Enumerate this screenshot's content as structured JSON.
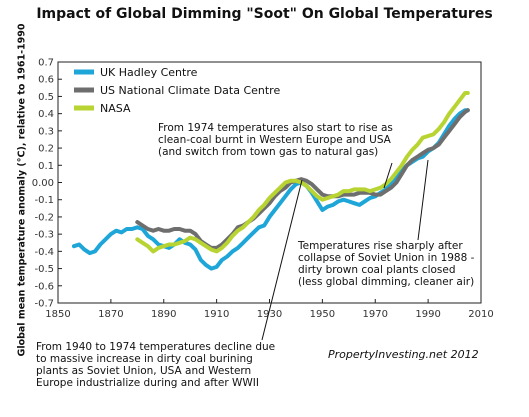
{
  "title": "Impact of Global Dimming \"Soot\" On Global Temperatures",
  "ylabel": "Global mean temperature anomaly (°C), relative to 1961-1990",
  "credit": "PropertyInvesting.net 2012",
  "annotations": {
    "a1974": [
      "From 1974 temperatures also start to rise as",
      "clean-coal burnt in Western Europe and USA",
      "(and switch from town gas to natural gas)"
    ],
    "a1988": [
      "Temperatures rise sharply after",
      "collapse of Soviet Union in 1988 -",
      "dirty brown coal plants closed",
      "(less global dimming, cleaner air)"
    ],
    "a1940": [
      "From 1940 to 1974 temperatures decline due",
      "to massive increase in dirty coal burining",
      "plants as Soviet Union, USA and Western",
      "Europe industrialize during and after WWII"
    ]
  },
  "chart_data": {
    "type": "line",
    "xlim": [
      1850,
      2010
    ],
    "ylim": [
      -0.7,
      0.7
    ],
    "x_ticks": [
      1850,
      1870,
      1890,
      1910,
      1930,
      1950,
      1970,
      1990,
      2010
    ],
    "y_ticks": [
      "0.7",
      "0.6",
      "0.5",
      "0.4",
      "0.3",
      "0.2",
      "0.1",
      "0.00",
      "-0.1",
      "-0.2",
      "-0.3",
      "-0.4",
      "-0.5",
      "-0.6",
      "-0.7"
    ],
    "legend": [
      "UK Hadley Centre",
      "US National Climate Data Centre",
      "NASA"
    ],
    "colors": [
      "#1ea6d8",
      "#6e6e6e",
      "#b8d432"
    ],
    "series": [
      {
        "name": "UK Hadley Centre",
        "x": [
          1856,
          1858,
          1860,
          1862,
          1864,
          1866,
          1868,
          1870,
          1872,
          1874,
          1876,
          1878,
          1880,
          1882,
          1884,
          1886,
          1888,
          1890,
          1892,
          1894,
          1896,
          1898,
          1900,
          1902,
          1904,
          1906,
          1908,
          1910,
          1912,
          1914,
          1916,
          1918,
          1920,
          1922,
          1924,
          1926,
          1928,
          1930,
          1932,
          1934,
          1936,
          1938,
          1940,
          1942,
          1944,
          1946,
          1948,
          1950,
          1952,
          1954,
          1956,
          1958,
          1960,
          1962,
          1964,
          1966,
          1968,
          1970,
          1972,
          1974,
          1976,
          1978,
          1980,
          1982,
          1984,
          1986,
          1988,
          1990,
          1992,
          1994,
          1996,
          1998,
          2000,
          2002,
          2004,
          2005
        ],
        "y": [
          -0.37,
          -0.36,
          -0.39,
          -0.41,
          -0.4,
          -0.36,
          -0.33,
          -0.3,
          -0.28,
          -0.29,
          -0.27,
          -0.27,
          -0.26,
          -0.27,
          -0.31,
          -0.33,
          -0.36,
          -0.37,
          -0.38,
          -0.36,
          -0.33,
          -0.35,
          -0.36,
          -0.39,
          -0.45,
          -0.48,
          -0.5,
          -0.49,
          -0.45,
          -0.43,
          -0.4,
          -0.38,
          -0.35,
          -0.32,
          -0.29,
          -0.26,
          -0.25,
          -0.2,
          -0.16,
          -0.12,
          -0.08,
          -0.04,
          -0.01,
          0.0,
          -0.02,
          -0.06,
          -0.11,
          -0.16,
          -0.14,
          -0.13,
          -0.11,
          -0.1,
          -0.11,
          -0.12,
          -0.13,
          -0.11,
          -0.09,
          -0.08,
          -0.06,
          -0.04,
          0.0,
          0.03,
          0.07,
          0.1,
          0.12,
          0.14,
          0.15,
          0.18,
          0.2,
          0.23,
          0.28,
          0.33,
          0.37,
          0.4,
          0.42,
          0.42
        ]
      },
      {
        "name": "US National Climate Data Centre",
        "x": [
          1880,
          1882,
          1884,
          1886,
          1888,
          1890,
          1892,
          1894,
          1896,
          1898,
          1900,
          1902,
          1904,
          1906,
          1908,
          1910,
          1912,
          1914,
          1916,
          1918,
          1920,
          1922,
          1924,
          1926,
          1928,
          1930,
          1932,
          1934,
          1936,
          1938,
          1940,
          1942,
          1944,
          1946,
          1948,
          1950,
          1952,
          1954,
          1956,
          1958,
          1960,
          1962,
          1964,
          1966,
          1968,
          1970,
          1972,
          1974,
          1976,
          1978,
          1980,
          1982,
          1984,
          1986,
          1988,
          1990,
          1992,
          1994,
          1996,
          1998,
          2000,
          2002,
          2004,
          2005
        ],
        "y": [
          -0.23,
          -0.25,
          -0.27,
          -0.28,
          -0.27,
          -0.28,
          -0.28,
          -0.27,
          -0.27,
          -0.28,
          -0.28,
          -0.3,
          -0.34,
          -0.36,
          -0.38,
          -0.38,
          -0.36,
          -0.33,
          -0.3,
          -0.26,
          -0.25,
          -0.23,
          -0.21,
          -0.18,
          -0.15,
          -0.12,
          -0.08,
          -0.05,
          -0.03,
          0.0,
          0.01,
          0.02,
          0.01,
          -0.01,
          -0.04,
          -0.07,
          -0.08,
          -0.08,
          -0.08,
          -0.07,
          -0.07,
          -0.07,
          -0.06,
          -0.06,
          -0.06,
          -0.07,
          -0.07,
          -0.05,
          -0.03,
          0.0,
          0.05,
          0.1,
          0.13,
          0.15,
          0.17,
          0.19,
          0.2,
          0.22,
          0.26,
          0.3,
          0.34,
          0.38,
          0.41,
          0.42
        ]
      },
      {
        "name": "NASA",
        "x": [
          1880,
          1882,
          1884,
          1886,
          1888,
          1890,
          1892,
          1894,
          1896,
          1898,
          1900,
          1902,
          1904,
          1906,
          1908,
          1910,
          1912,
          1914,
          1916,
          1918,
          1920,
          1922,
          1924,
          1926,
          1928,
          1930,
          1932,
          1934,
          1936,
          1938,
          1940,
          1942,
          1944,
          1946,
          1948,
          1950,
          1952,
          1954,
          1956,
          1958,
          1960,
          1962,
          1964,
          1966,
          1968,
          1970,
          1972,
          1974,
          1976,
          1978,
          1980,
          1982,
          1984,
          1986,
          1988,
          1990,
          1992,
          1994,
          1996,
          1998,
          2000,
          2002,
          2004,
          2005
        ],
        "y": [
          -0.33,
          -0.35,
          -0.37,
          -0.4,
          -0.38,
          -0.37,
          -0.36,
          -0.36,
          -0.35,
          -0.34,
          -0.32,
          -0.33,
          -0.35,
          -0.37,
          -0.39,
          -0.4,
          -0.38,
          -0.35,
          -0.31,
          -0.28,
          -0.26,
          -0.23,
          -0.2,
          -0.16,
          -0.13,
          -0.09,
          -0.06,
          -0.03,
          0.0,
          0.01,
          0.01,
          0.0,
          -0.02,
          -0.05,
          -0.08,
          -0.1,
          -0.09,
          -0.08,
          -0.07,
          -0.05,
          -0.05,
          -0.04,
          -0.04,
          -0.04,
          -0.05,
          -0.04,
          -0.03,
          -0.01,
          0.02,
          0.06,
          0.1,
          0.15,
          0.19,
          0.22,
          0.26,
          0.27,
          0.28,
          0.31,
          0.35,
          0.4,
          0.44,
          0.48,
          0.52,
          0.52
        ]
      }
    ],
    "grid": false,
    "legend_position": "top-left"
  }
}
